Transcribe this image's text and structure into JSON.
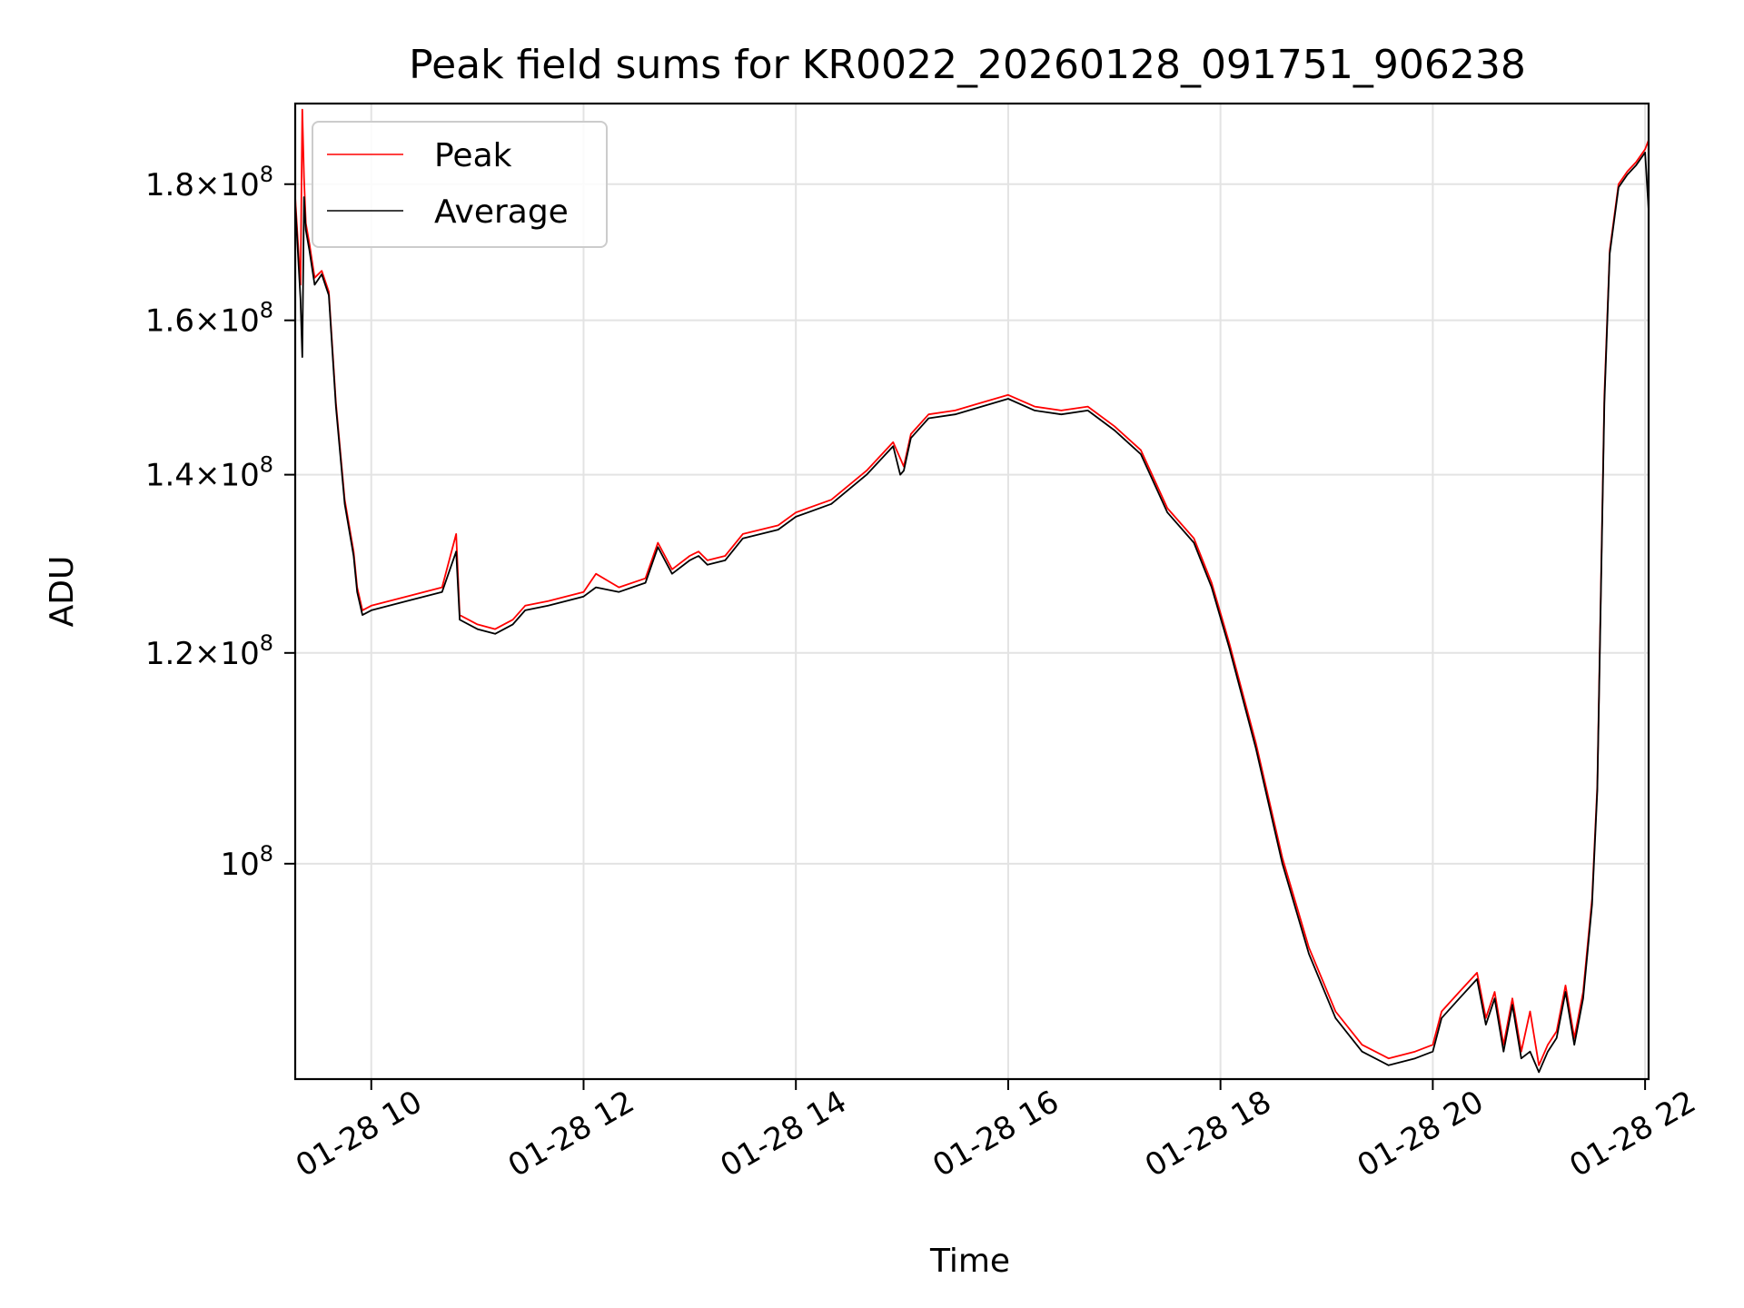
{
  "chart_data": {
    "type": "line",
    "title": "Peak field sums for KR0022_20260128_091751_906238",
    "xlabel": "Time",
    "ylabel": "ADU",
    "yscale": "log",
    "grid": true,
    "legend_position": "upper-left",
    "xlim": [
      "2026-01-28 09:17",
      "2026-01-28 22:02"
    ],
    "ylim": [
      83000000,
      193000000
    ],
    "x_ticks": [
      "2026-01-28 10:00",
      "2026-01-28 12:00",
      "2026-01-28 14:00",
      "2026-01-28 16:00",
      "2026-01-28 18:00",
      "2026-01-28 20:00",
      "2026-01-28 22:00"
    ],
    "x_tick_labels": [
      "01-28 10",
      "01-28 12",
      "01-28 14",
      "01-28 16",
      "01-28 18",
      "01-28 20",
      "01-28 22"
    ],
    "y_ticks": [
      {
        "value": 100000000,
        "mantissa": "",
        "exponent": "8"
      },
      {
        "value": 120000000,
        "mantissa": "1.2",
        "exponent": "8"
      },
      {
        "value": 140000000,
        "mantissa": "1.4",
        "exponent": "8"
      },
      {
        "value": 160000000,
        "mantissa": "1.6",
        "exponent": "8"
      },
      {
        "value": 180000000,
        "mantissa": "1.8",
        "exponent": "8"
      }
    ],
    "series": [
      {
        "name": "Peak",
        "color": "#ff0000",
        "x": [
          "2026-01-28 09:17",
          "2026-01-28 09:20",
          "2026-01-28 09:21",
          "2026-01-28 09:22",
          "2026-01-28 09:23",
          "2026-01-28 09:25",
          "2026-01-28 09:28",
          "2026-01-28 09:32",
          "2026-01-28 09:36",
          "2026-01-28 09:40",
          "2026-01-28 09:45",
          "2026-01-28 09:50",
          "2026-01-28 09:52",
          "2026-01-28 09:55",
          "2026-01-28 10:00",
          "2026-01-28 10:20",
          "2026-01-28 10:40",
          "2026-01-28 10:48",
          "2026-01-28 10:50",
          "2026-01-28 11:00",
          "2026-01-28 11:10",
          "2026-01-28 11:20",
          "2026-01-28 11:27",
          "2026-01-28 11:40",
          "2026-01-28 12:00",
          "2026-01-28 12:07",
          "2026-01-28 12:20",
          "2026-01-28 12:35",
          "2026-01-28 12:42",
          "2026-01-28 12:50",
          "2026-01-28 13:00",
          "2026-01-28 13:05",
          "2026-01-28 13:10",
          "2026-01-28 13:20",
          "2026-01-28 13:30",
          "2026-01-28 13:50",
          "2026-01-28 14:00",
          "2026-01-28 14:20",
          "2026-01-28 14:40",
          "2026-01-28 14:55",
          "2026-01-28 14:59",
          "2026-01-28 15:01",
          "2026-01-28 15:05",
          "2026-01-28 15:15",
          "2026-01-28 15:30",
          "2026-01-28 15:45",
          "2026-01-28 16:00",
          "2026-01-28 16:15",
          "2026-01-28 16:30",
          "2026-01-28 16:45",
          "2026-01-28 17:00",
          "2026-01-28 17:15",
          "2026-01-28 17:30",
          "2026-01-28 17:45",
          "2026-01-28 17:55",
          "2026-01-28 18:05",
          "2026-01-28 18:20",
          "2026-01-28 18:35",
          "2026-01-28 18:50",
          "2026-01-28 19:05",
          "2026-01-28 19:20",
          "2026-01-28 19:35",
          "2026-01-28 19:50",
          "2026-01-28 20:00",
          "2026-01-28 20:05",
          "2026-01-28 20:15",
          "2026-01-28 20:25",
          "2026-01-28 20:30",
          "2026-01-28 20:35",
          "2026-01-28 20:40",
          "2026-01-28 20:45",
          "2026-01-28 20:50",
          "2026-01-28 20:55",
          "2026-01-28 21:00",
          "2026-01-28 21:05",
          "2026-01-28 21:10",
          "2026-01-28 21:15",
          "2026-01-28 21:20",
          "2026-01-28 21:25",
          "2026-01-28 21:30",
          "2026-01-28 21:33",
          "2026-01-28 21:37",
          "2026-01-28 21:40",
          "2026-01-28 21:45",
          "2026-01-28 21:50",
          "2026-01-28 21:55",
          "2026-01-28 22:00",
          "2026-01-28 22:02"
        ],
        "y": [
          178000000,
          165000000,
          192000000,
          181000000,
          174000000,
          171000000,
          166000000,
          167000000,
          164000000,
          149000000,
          137000000,
          131000000,
          127000000,
          124500000,
          125000000,
          126000000,
          127000000,
          133000000,
          124000000,
          123000000,
          122500000,
          123500000,
          125000000,
          125500000,
          126500000,
          128500000,
          127000000,
          128000000,
          132000000,
          129000000,
          130500000,
          131000000,
          130000000,
          130500000,
          133000000,
          134000000,
          135500000,
          137000000,
          140500000,
          144000000,
          142000000,
          141000000,
          145000000,
          147500000,
          148000000,
          149000000,
          150000000,
          148500000,
          148000000,
          148500000,
          146000000,
          143000000,
          136000000,
          132500000,
          127500000,
          121000000,
          111000000,
          100500000,
          93000000,
          88000000,
          85500000,
          84500000,
          85000000,
          85500000,
          88000000,
          89500000,
          91000000,
          87500000,
          89500000,
          85500000,
          89000000,
          85000000,
          88000000,
          84000000,
          85500000,
          86500000,
          90000000,
          86000000,
          89500000,
          97000000,
          107000000,
          150000000,
          170000000,
          180000000,
          182000000,
          183500000,
          185500000,
          187000000
        ]
      },
      {
        "name": "Average",
        "color": "#000000",
        "x": [
          "2026-01-28 09:17",
          "2026-01-28 09:20",
          "2026-01-28 09:21",
          "2026-01-28 09:22",
          "2026-01-28 09:23",
          "2026-01-28 09:25",
          "2026-01-28 09:28",
          "2026-01-28 09:32",
          "2026-01-28 09:36",
          "2026-01-28 09:40",
          "2026-01-28 09:45",
          "2026-01-28 09:50",
          "2026-01-28 09:52",
          "2026-01-28 09:55",
          "2026-01-28 10:00",
          "2026-01-28 10:20",
          "2026-01-28 10:40",
          "2026-01-28 10:48",
          "2026-01-28 10:50",
          "2026-01-28 11:00",
          "2026-01-28 11:10",
          "2026-01-28 11:20",
          "2026-01-28 11:27",
          "2026-01-28 11:40",
          "2026-01-28 12:00",
          "2026-01-28 12:07",
          "2026-01-28 12:20",
          "2026-01-28 12:35",
          "2026-01-28 12:42",
          "2026-01-28 12:50",
          "2026-01-28 13:00",
          "2026-01-28 13:05",
          "2026-01-28 13:10",
          "2026-01-28 13:20",
          "2026-01-28 13:30",
          "2026-01-28 13:50",
          "2026-01-28 14:00",
          "2026-01-28 14:20",
          "2026-01-28 14:40",
          "2026-01-28 14:55",
          "2026-01-28 14:59",
          "2026-01-28 15:01",
          "2026-01-28 15:05",
          "2026-01-28 15:15",
          "2026-01-28 15:30",
          "2026-01-28 15:45",
          "2026-01-28 16:00",
          "2026-01-28 16:15",
          "2026-01-28 16:30",
          "2026-01-28 16:45",
          "2026-01-28 17:00",
          "2026-01-28 17:15",
          "2026-01-28 17:30",
          "2026-01-28 17:45",
          "2026-01-28 17:55",
          "2026-01-28 18:05",
          "2026-01-28 18:20",
          "2026-01-28 18:35",
          "2026-01-28 18:50",
          "2026-01-28 19:05",
          "2026-01-28 19:20",
          "2026-01-28 19:35",
          "2026-01-28 19:50",
          "2026-01-28 20:00",
          "2026-01-28 20:05",
          "2026-01-28 20:15",
          "2026-01-28 20:25",
          "2026-01-28 20:30",
          "2026-01-28 20:35",
          "2026-01-28 20:40",
          "2026-01-28 20:45",
          "2026-01-28 20:50",
          "2026-01-28 20:55",
          "2026-01-28 21:00",
          "2026-01-28 21:05",
          "2026-01-28 21:10",
          "2026-01-28 21:15",
          "2026-01-28 21:20",
          "2026-01-28 21:25",
          "2026-01-28 21:30",
          "2026-01-28 21:33",
          "2026-01-28 21:37",
          "2026-01-28 21:40",
          "2026-01-28 21:45",
          "2026-01-28 21:50",
          "2026-01-28 21:55",
          "2026-01-28 22:00",
          "2026-01-28 22:02"
        ],
        "y": [
          177000000,
          163000000,
          155000000,
          178000000,
          173000000,
          170000000,
          165000000,
          166500000,
          163500000,
          148500000,
          136500000,
          130500000,
          126500000,
          124000000,
          124500000,
          125500000,
          126500000,
          131000000,
          123500000,
          122500000,
          122000000,
          123000000,
          124500000,
          125000000,
          126000000,
          127000000,
          126500000,
          127500000,
          131500000,
          128500000,
          130000000,
          130500000,
          129500000,
          130000000,
          132500000,
          133500000,
          135000000,
          136500000,
          140000000,
          143500000,
          140000000,
          140500000,
          144500000,
          147000000,
          147500000,
          148500000,
          149500000,
          148000000,
          147500000,
          148000000,
          145500000,
          142500000,
          135500000,
          132000000,
          127000000,
          120500000,
          110500000,
          100000000,
          92500000,
          87500000,
          85000000,
          84000000,
          84500000,
          85000000,
          87500000,
          89000000,
          90500000,
          87000000,
          89000000,
          85000000,
          88500000,
          84500000,
          85000000,
          83500000,
          85000000,
          86000000,
          89500000,
          85500000,
          89000000,
          96500000,
          106500000,
          149000000,
          169500000,
          179500000,
          181500000,
          183000000,
          185000000,
          176000000
        ]
      }
    ]
  }
}
